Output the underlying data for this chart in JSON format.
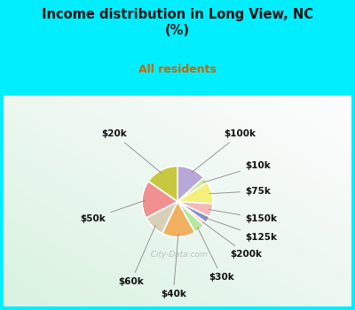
{
  "title": "Income distribution in Long View, NC\n(%)",
  "subtitle": "All residents",
  "title_color": "#111111",
  "subtitle_color": "#cc6600",
  "background_color": "#00eeff",
  "labels": [
    "$100k",
    "$10k",
    "$75k",
    "$150k",
    "$125k",
    "$200k",
    "$30k",
    "$40k",
    "$60k",
    "$50k",
    "$20k"
  ],
  "sizes": [
    13,
    2.5,
    10,
    6,
    3,
    1.5,
    5,
    15,
    10,
    17,
    15
  ],
  "colors": [
    "#b8a8d8",
    "#c8e8a0",
    "#f5f07a",
    "#f5b8b8",
    "#8090d0",
    "#f0c8a8",
    "#b8e8a0",
    "#f0b060",
    "#d8d0b8",
    "#f09090",
    "#c8c840"
  ],
  "startangle": 90,
  "wedge_edge_color": "white",
  "wedge_edge_width": 1.2,
  "label_fontsize": 7.5,
  "watermark": "City-Data.com"
}
